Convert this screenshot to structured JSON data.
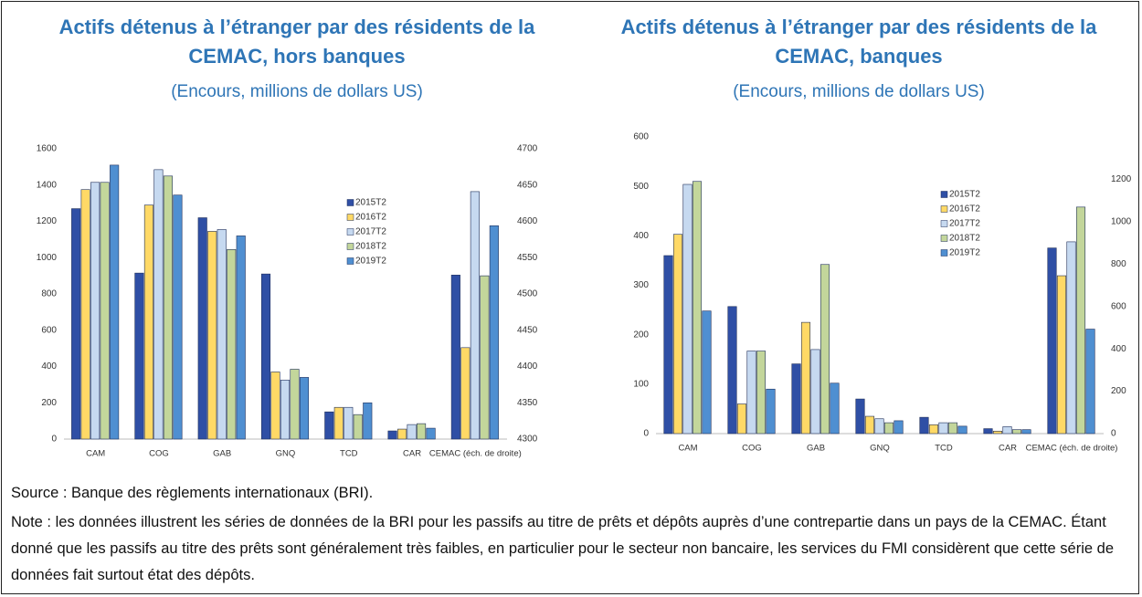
{
  "chart_data": [
    {
      "type": "bar",
      "title": "Actifs détenus à l’étranger par des résidents de la CEMAC, hors banques",
      "subtitle": "(Encours, millions de dollars US)",
      "categories": [
        "CAM",
        "COG",
        "GAB",
        "GNQ",
        "TCD",
        "CAR",
        "CEMAC (éch. de droite)"
      ],
      "axis_by_category": [
        "y",
        "y",
        "y",
        "y",
        "y",
        "y",
        "y2"
      ],
      "series": [
        {
          "name": "2015T2",
          "color": "#2f4fa5",
          "values": [
            1270,
            915,
            1220,
            910,
            150,
            45,
            4526
          ]
        },
        {
          "name": "2016T2",
          "color": "#ffd966",
          "values": [
            1375,
            1290,
            1145,
            370,
            175,
            55,
            4426
          ]
        },
        {
          "name": "2017T2",
          "color": "#c6d9f0",
          "values": [
            1415,
            1485,
            1155,
            325,
            175,
            80,
            4641
          ]
        },
        {
          "name": "2018T2",
          "color": "#c3d69b",
          "values": [
            1415,
            1450,
            1045,
            385,
            135,
            85,
            4525
          ]
        },
        {
          "name": "2019T2",
          "color": "#4f8fd1",
          "values": [
            1510,
            1345,
            1120,
            340,
            200,
            60,
            4594
          ]
        }
      ],
      "ylim": [
        0,
        1600
      ],
      "yticks": [
        0,
        200,
        400,
        600,
        800,
        1000,
        1200,
        1400,
        1600
      ],
      "y2lim": [
        4300,
        4700
      ],
      "y2ticks": [
        4300,
        4350,
        4400,
        4450,
        4500,
        4550,
        4600,
        4650,
        4700
      ],
      "grid": false
    },
    {
      "type": "bar",
      "title": "Actifs détenus à l’étranger par des résidents de la CEMAC, banques",
      "subtitle": "(Encours, millions de dollars US)",
      "categories": [
        "CAM",
        "COG",
        "GAB",
        "GNQ",
        "TCD",
        "CAR",
        "CEMAC (éch. de droite)"
      ],
      "axis_by_category": [
        "y",
        "y",
        "y",
        "y",
        "y",
        "y",
        "y2"
      ],
      "series": [
        {
          "name": "2015T2",
          "color": "#2f4fa5",
          "values": [
            360,
            257,
            141,
            70,
            33,
            10,
            876
          ]
        },
        {
          "name": "2016T2",
          "color": "#ffd966",
          "values": [
            403,
            60,
            225,
            35,
            18,
            5,
            745
          ]
        },
        {
          "name": "2017T2",
          "color": "#c6d9f0",
          "values": [
            504,
            167,
            170,
            30,
            22,
            14,
            905
          ]
        },
        {
          "name": "2018T2",
          "color": "#c3d69b",
          "values": [
            510,
            167,
            342,
            22,
            22,
            8,
            1069
          ]
        },
        {
          "name": "2019T2",
          "color": "#4f8fd1",
          "values": [
            248,
            90,
            102,
            26,
            15,
            8,
            493
          ]
        }
      ],
      "ylim": [
        0,
        600
      ],
      "yticks": [
        0,
        100,
        200,
        300,
        400,
        500,
        600
      ],
      "y2lim": [
        0,
        1400
      ],
      "y2ticks": [
        0,
        200,
        400,
        600,
        800,
        1000,
        1200
      ],
      "grid": false
    }
  ],
  "source": "Source : Banque des règlements internationaux (BRI).",
  "note": "Note : les données illustrent les séries de données de la BRI pour les passifs au titre de prêts et dépôts auprès d’une contrepartie dans un pays de la CEMAC. Étant donné que les passifs au titre des prêts sont généralement très faibles, en particulier pour le secteur non bancaire, les services du FMI considèrent que cette série de données fait surtout état des dépôts."
}
